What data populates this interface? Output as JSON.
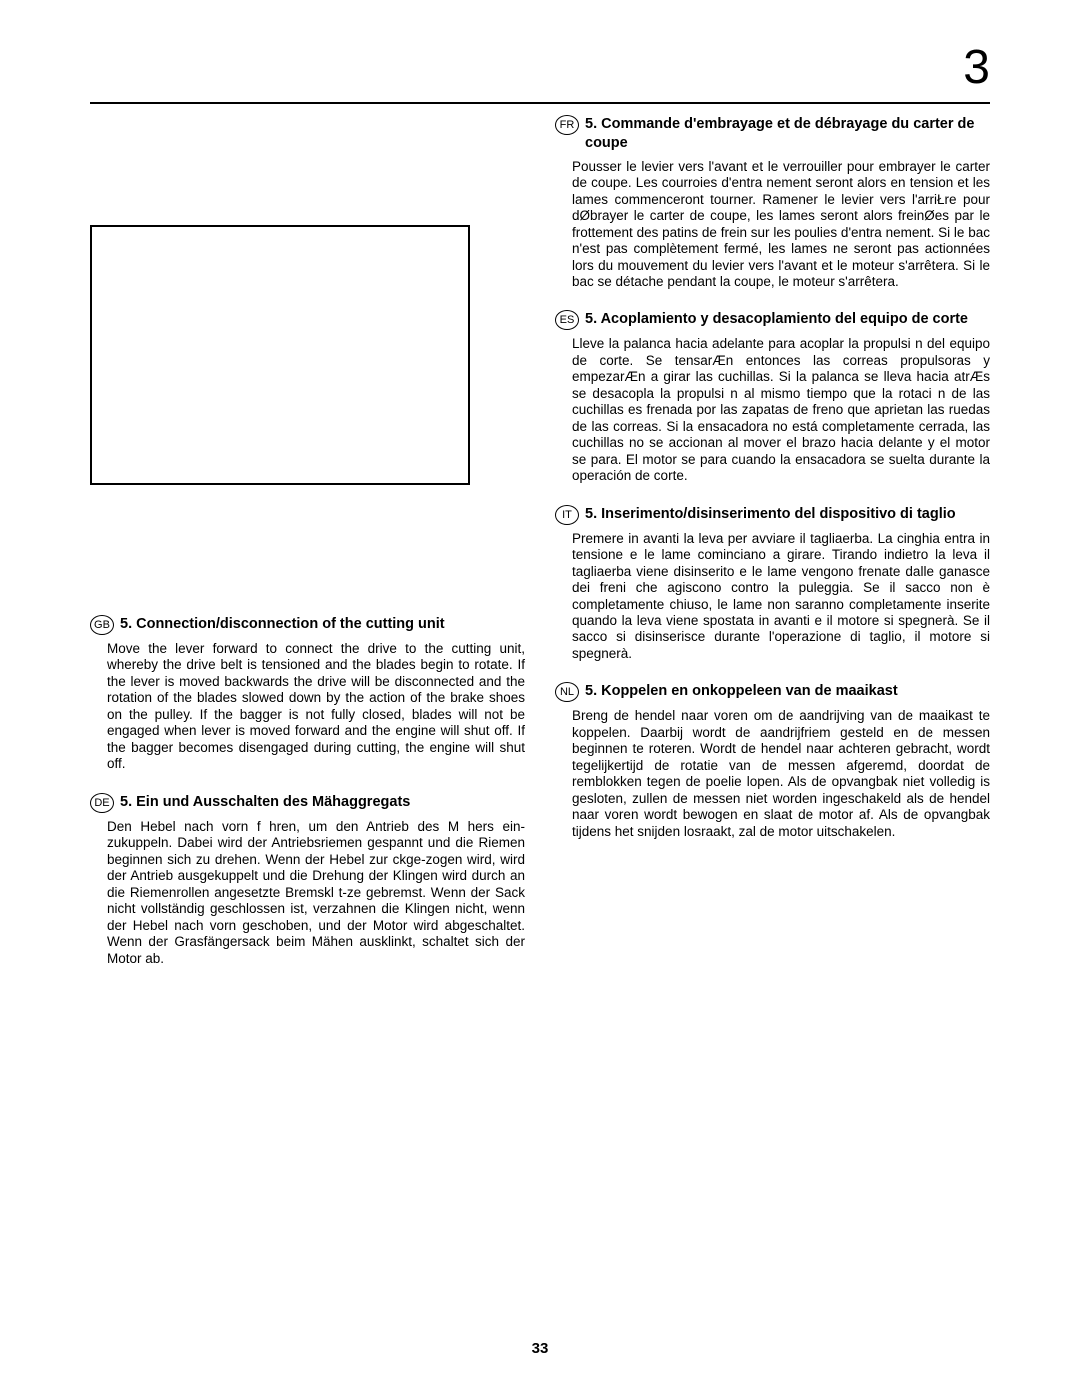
{
  "pageNumberTop": "3",
  "pageNumberBottom": "33",
  "leftColumn": {
    "sections": [
      {
        "lang": "GB",
        "heading": "5. Connection/disconnection of the cutting unit",
        "body": "Move the lever forward to connect the drive to the cutting unit, whereby the drive belt is tensioned and the blades begin to rotate. If the lever is moved backwards the drive will be disconnected and the rotation of the blades slowed down by the action of the brake shoes on the pulley. If the bagger is not fully closed, blades will not be engaged when lever is moved forward and the engine will shut off.  If the bagger becomes disengaged during cutting, the engine will shut off."
      },
      {
        "lang": "DE",
        "heading": "5. Ein und Ausschalten des Mähaggregats",
        "body": "Den Hebel nach vorn f hren, um den Antrieb des M hers ein-zukuppeln. Dabei wird der Antriebsriemen gespannt und die Riemen beginnen sich zu drehen. Wenn der Hebel zur ckge-zogen wird, wird der Antrieb ausgekuppelt und die Drehung der Klingen wird durch an die Riemenrollen angesetzte Bremskl t-ze gebremst.  Wenn der Sack nicht vollständig geschlossen ist, verzahnen die Klingen nicht, wenn der Hebel nach vorn geschoben, und der Motor wird abgeschaltet.  Wenn der Grasfängersack beim Mähen ausklinkt, schaltet sich der Motor ab."
      }
    ]
  },
  "rightColumn": {
    "sections": [
      {
        "lang": "FR",
        "heading": "5. Commande d'embrayage et de débrayage du carter de coupe",
        "body": "Pousser le levier vers l'avant et le verrouiller pour embrayer le carter de coupe. Les courroies d'entra nement seront alors en tension et les lames commenceront  tourner. Ramener le levier vers l'arriŁre pour dØbrayer le carter de coupe, les lames seront alors freinØes par le frottement des patins de frein sur les poulies d'entra nement. Si le bac n'est pas complètement fermé, les lames ne seront pas actionnées lors du mouvement du levier vers l'avant et le moteur s'arrêtera.  Si le bac se détache pendant la coupe, le moteur s'arrêtera."
      },
      {
        "lang": "ES",
        "heading": "5.  Acoplamiento y desacoplamiento del equipo de corte",
        "body": "Lleve la palanca hacia adelante para acoplar la propulsi n del equipo de corte. Se tensarÆn entonces las correas propulsoras y empezarÆn a girar las cuchillas. Si la palanca se lleva hacia atrÆs se desacopla la propulsi n al mismo tiempo que la rotaci n de las cuchillas es frenada por las zapatas de freno que aprietan las ruedas de las correas.  Si la ensacadora no está completamente cerrada, las cuchillas no se accionan al mover el brazo hacia delante y el motor se para.  El motor se para cuando la ensacadora se suelta durante la operación de corte."
      },
      {
        "lang": "IT",
        "heading": "5. Inserimento/disinserimento del dispositivo di taglio",
        "body": "Premere in avanti la leva per avviare il tagliaerba. La cinghia entra in tensione e le lame cominciano a girare. Tirando indietro la leva il tagliaerba viene disinserito e le lame vengono frenate dalle ganasce dei freni che agiscono contro la puleggia.  Se il sacco non è completamente chiuso, le lame non saranno completamente inserite quando la leva viene spostata in avanti e il motore si spegnerà.  Se il sacco si disinserisce durante l'operazione di taglio, il motore si spegnerà."
      },
      {
        "lang": "NL",
        "heading": "5.  Koppelen en onkoppeleen van de maaikast",
        "body": "Breng de hendel naar voren om de aandrijving van de maaikast te koppelen. Daarbij wordt de aandrijfriem gesteld en de messen beginnen te roteren. Wordt de hendel naar achteren gebracht, wordt tegelijkertijd de rotatie van de messen afgeremd, doordat de remblokken tegen de poelie lopen. Als de opvangbak niet volledig is gesloten, zullen de messen niet worden ingeschakeld als de hendel naar voren wordt bewogen en slaat de motor af.  Als de opvangbak tijdens het snijden losraakt, zal de motor uitschakelen."
      }
    ]
  }
}
